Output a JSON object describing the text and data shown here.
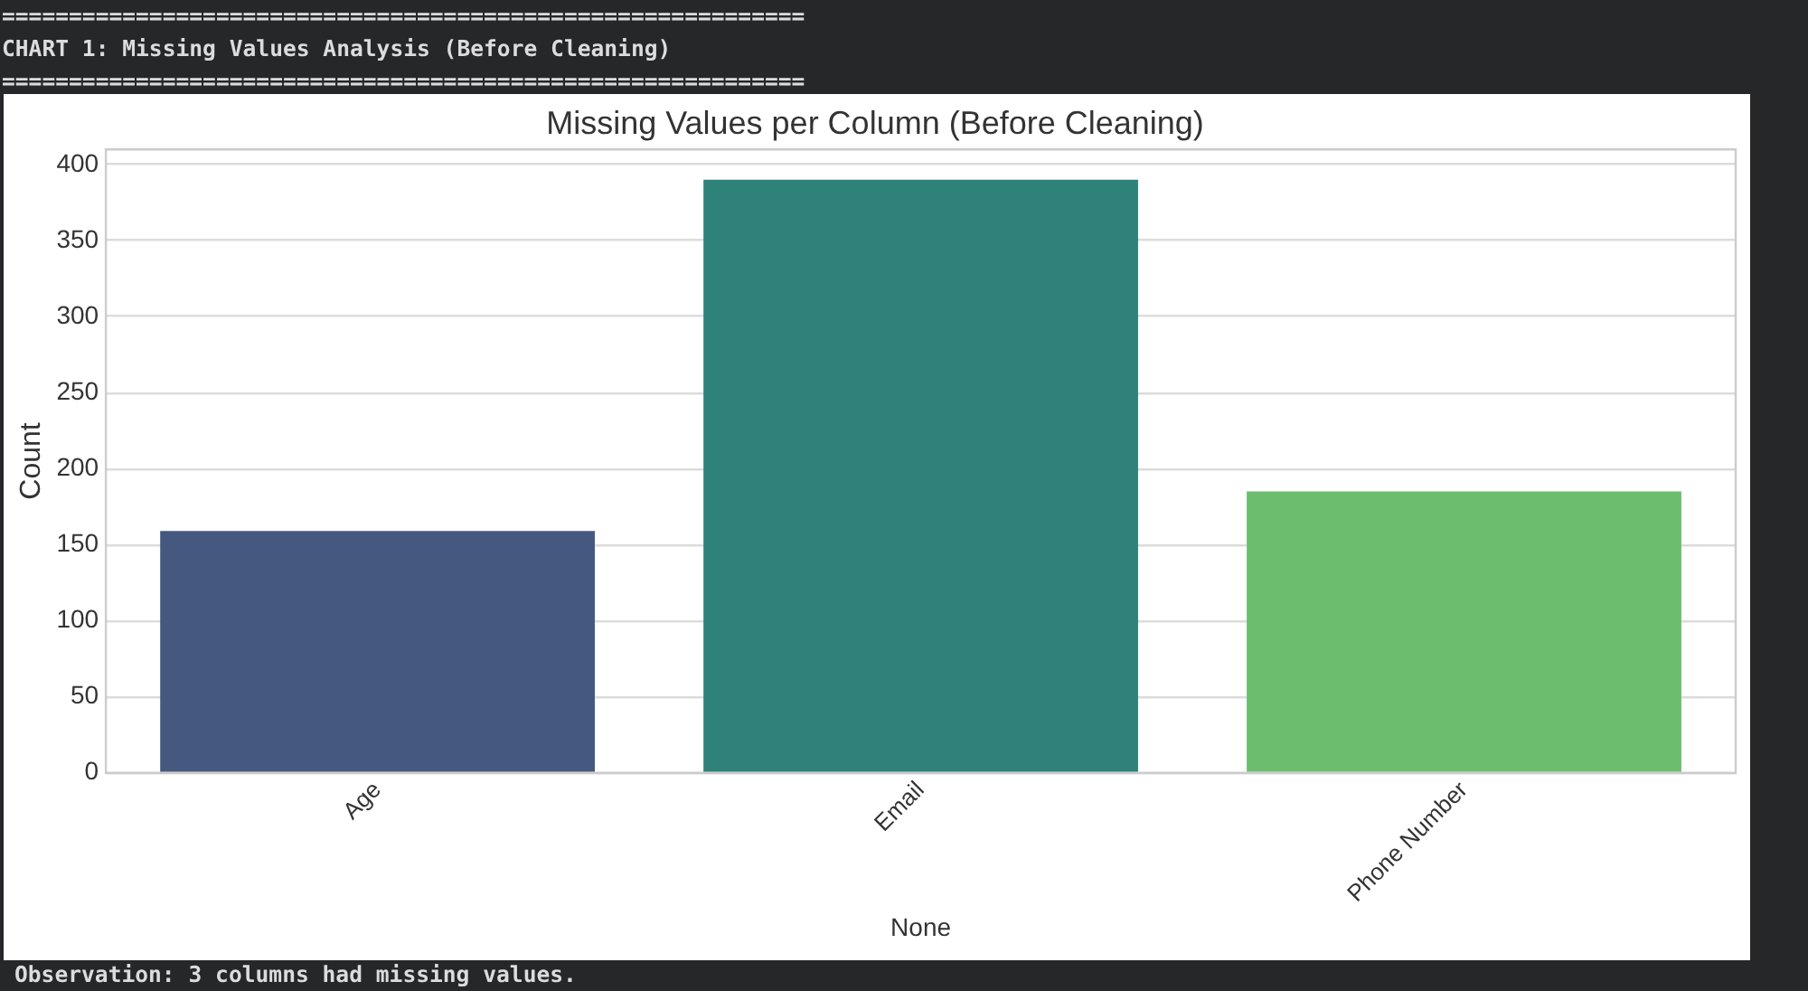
{
  "chart_data": {
    "type": "bar",
    "title": "Missing Values per Column (Before Cleaning)",
    "xlabel": "None",
    "ylabel": "Count",
    "categories": [
      "Age",
      "Email",
      "Phone Number"
    ],
    "values": [
      159,
      390,
      185
    ],
    "colors": [
      "#45587f",
      "#2e8279",
      "#6cbd6e"
    ],
    "ylim": [
      0,
      410
    ],
    "yticks": [
      0,
      50,
      100,
      150,
      200,
      250,
      300,
      350,
      400
    ],
    "grid": "y",
    "annotations": [
      "============================================================",
      "CHART 1: Missing Values Analysis (Before Cleaning)",
      "============================================================",
      "Observation: 3 columns had missing values."
    ]
  }
}
